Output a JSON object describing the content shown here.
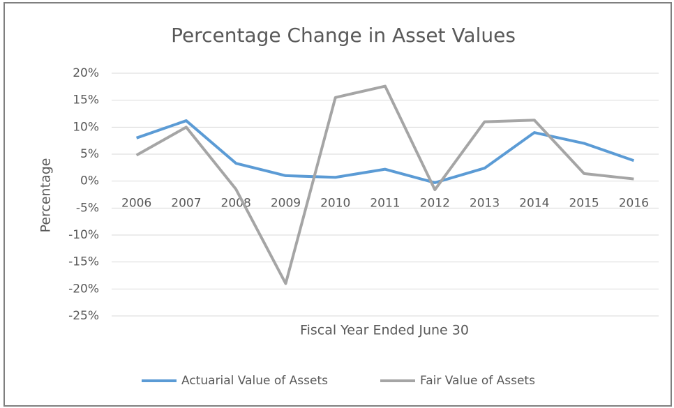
{
  "chart_data": {
    "type": "line",
    "title": "Percentage Change in Asset Values",
    "y_label": "Percentage",
    "x_label": "Fiscal Year Ended June 30",
    "categories": [
      "2006",
      "2007",
      "2008",
      "2009",
      "2010",
      "2011",
      "2012",
      "2013",
      "2014",
      "2015",
      "2016"
    ],
    "series": [
      {
        "name": "Actuarial Value of Assets",
        "color": "#5b9bd5",
        "values": [
          8.0,
          11.2,
          3.3,
          1.0,
          0.7,
          2.2,
          -0.3,
          2.4,
          9.0,
          7.0,
          3.8
        ]
      },
      {
        "name": "Fair Value of Assets",
        "color": "#a5a5a5",
        "values": [
          4.8,
          10.0,
          -1.5,
          -19.0,
          15.5,
          17.6,
          -1.6,
          11.0,
          11.3,
          1.4,
          0.4
        ]
      }
    ],
    "ylim": [
      -25,
      20
    ],
    "yticks": [
      {
        "value": 20,
        "label": "20%"
      },
      {
        "value": 15,
        "label": "15%"
      },
      {
        "value": 10,
        "label": "10%"
      },
      {
        "value": 5,
        "label": "5%"
      },
      {
        "value": 0,
        "label": "0%"
      },
      {
        "value": -5,
        "label": "-5%"
      },
      {
        "value": -10,
        "label": "-10%"
      },
      {
        "value": -15,
        "label": "-15%"
      },
      {
        "value": -20,
        "label": "-20%"
      },
      {
        "value": -25,
        "label": "-25%"
      }
    ],
    "grid": true,
    "legend": "bottom"
  }
}
